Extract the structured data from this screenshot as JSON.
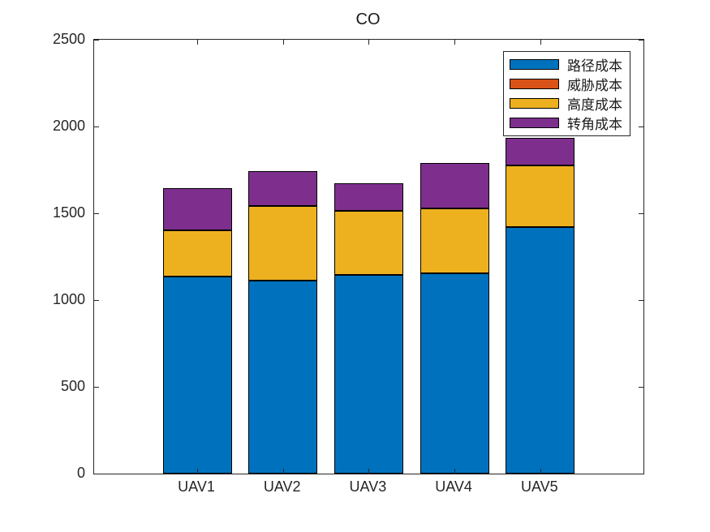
{
  "window": {
    "background": "#ffffff"
  },
  "chart_data": {
    "type": "bar",
    "stacked": true,
    "title": "CO",
    "categories": [
      "UAV1",
      "UAV2",
      "UAV3",
      "UAV4",
      "UAV5"
    ],
    "series": [
      {
        "name": "路径成本",
        "color": "#0072BD",
        "values": [
          1135,
          1110,
          1145,
          1155,
          1420
        ]
      },
      {
        "name": "威胁成本",
        "color": "#D95319",
        "values": [
          0,
          0,
          0,
          0,
          0
        ]
      },
      {
        "name": "高度成本",
        "color": "#EDB120",
        "values": [
          265,
          430,
          370,
          375,
          355
        ]
      },
      {
        "name": "转角成本",
        "color": "#7E2F8E",
        "values": [
          245,
          205,
          160,
          260,
          160
        ]
      }
    ],
    "stack_totals": [
      1645,
      1745,
      1675,
      1790,
      1935
    ],
    "xlabel": "",
    "ylabel": "",
    "ylim": [
      0,
      2500
    ],
    "yticks": [
      0,
      500,
      1000,
      1500,
      2000,
      2500
    ],
    "grid": false,
    "legend_position": "top-right",
    "bar_edge_color": "#000000",
    "axis_color": "#262626",
    "title_color": "#1a1a1a"
  }
}
